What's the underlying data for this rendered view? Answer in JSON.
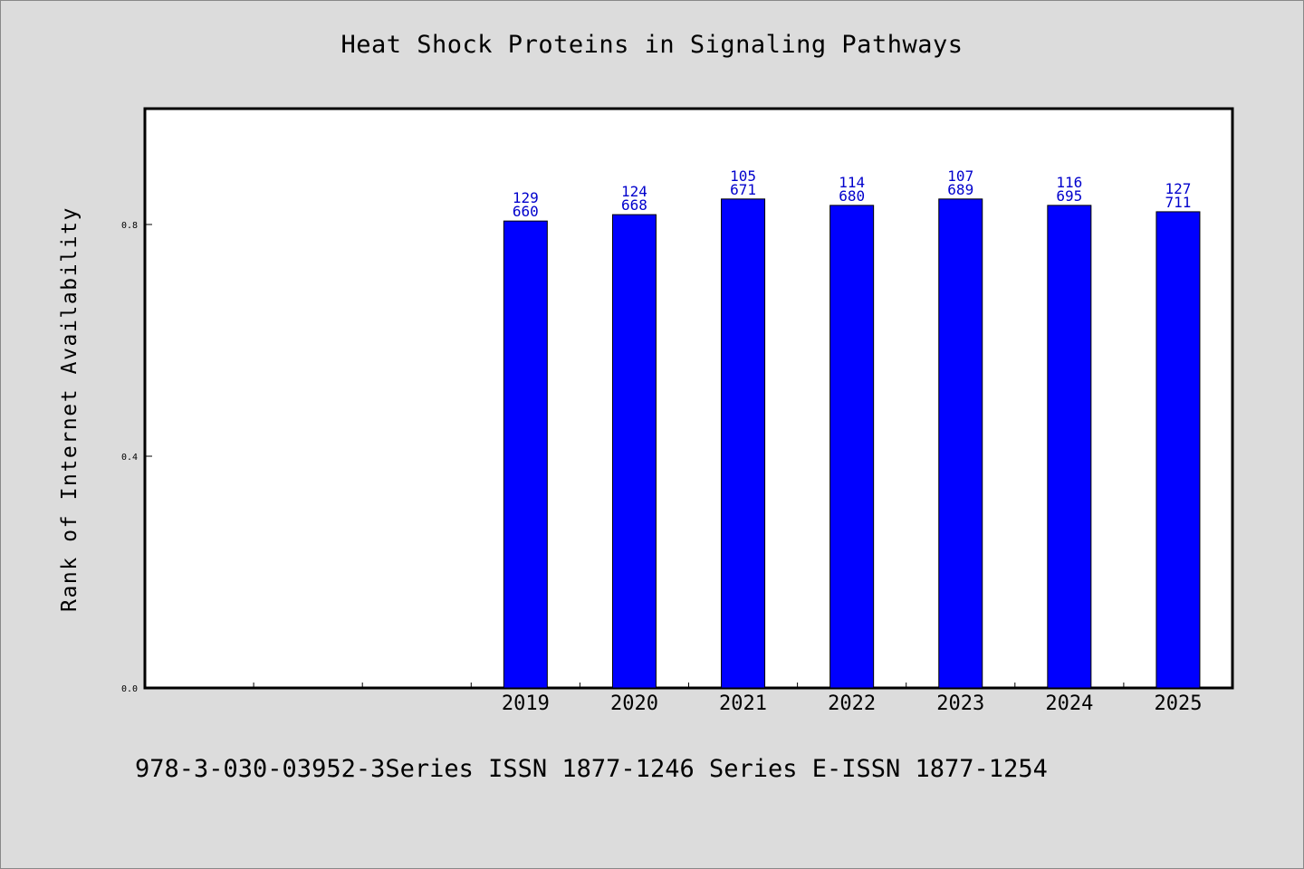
{
  "chart_data": {
    "type": "bar",
    "title": "Heat Shock Proteins in Signaling Pathways",
    "xlabel": "",
    "ylabel": "Rank of Internet Availability",
    "x_slots": 10,
    "categories": [
      "2019",
      "2020",
      "2021",
      "2022",
      "2023",
      "2024",
      "2025"
    ],
    "values": [
      0.806,
      0.817,
      0.844,
      0.833,
      0.844,
      0.833,
      0.822
    ],
    "bar_labels": [
      [
        "129",
        "660"
      ],
      [
        "124",
        "668"
      ],
      [
        "105",
        "671"
      ],
      [
        "114",
        "680"
      ],
      [
        "107",
        "689"
      ],
      [
        "116",
        "695"
      ],
      [
        "127",
        "711"
      ]
    ],
    "ylim": [
      0,
      1.0
    ],
    "yticks": [
      0.0,
      0.4,
      0.8
    ],
    "ytick_labels": [
      "0.0",
      "0.4",
      "0.8"
    ],
    "grid": false,
    "bar_color": "#0000ff",
    "label_color": "#0000cc"
  },
  "footer": "978-3-030-03952-3Series ISSN 1877-1246 Series E-ISSN 1877-1254"
}
